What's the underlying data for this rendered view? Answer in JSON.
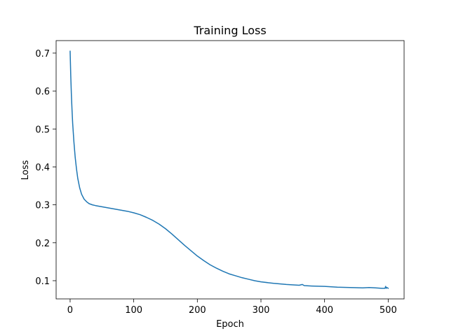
{
  "chart_data": {
    "type": "line",
    "title": "Training Loss",
    "xlabel": "Epoch",
    "ylabel": "Loss",
    "xlim": [
      -22,
      525
    ],
    "ylim": [
      0.052,
      0.733
    ],
    "x_ticks": [
      0,
      100,
      200,
      300,
      400,
      500
    ],
    "y_ticks": [
      0.1,
      0.2,
      0.3,
      0.4,
      0.5,
      0.6,
      0.7
    ],
    "y_tick_labels": [
      "0.1",
      "0.2",
      "0.3",
      "0.4",
      "0.5",
      "0.6",
      "0.7"
    ],
    "grid": false,
    "legend": false,
    "series": [
      {
        "color": "#1f77b4",
        "x": [
          0,
          1,
          2,
          3,
          4,
          5,
          6,
          8,
          10,
          12,
          15,
          18,
          22,
          26,
          30,
          35,
          40,
          50,
          60,
          70,
          80,
          90,
          100,
          110,
          120,
          130,
          140,
          150,
          160,
          170,
          180,
          190,
          200,
          210,
          220,
          230,
          240,
          250,
          260,
          270,
          280,
          290,
          300,
          320,
          340,
          360,
          365,
          368,
          380,
          400,
          420,
          440,
          460,
          470,
          480,
          490,
          495,
          496,
          497,
          498,
          500
        ],
        "y": [
          0.705,
          0.64,
          0.59,
          0.55,
          0.515,
          0.49,
          0.465,
          0.425,
          0.395,
          0.37,
          0.345,
          0.328,
          0.315,
          0.308,
          0.303,
          0.3,
          0.298,
          0.295,
          0.292,
          0.289,
          0.286,
          0.283,
          0.279,
          0.274,
          0.267,
          0.259,
          0.249,
          0.237,
          0.223,
          0.208,
          0.193,
          0.179,
          0.165,
          0.153,
          0.142,
          0.133,
          0.125,
          0.118,
          0.113,
          0.108,
          0.104,
          0.1,
          0.097,
          0.093,
          0.09,
          0.088,
          0.09,
          0.087,
          0.086,
          0.085,
          0.083,
          0.082,
          0.081,
          0.082,
          0.081,
          0.08,
          0.08,
          0.085,
          0.08,
          0.082,
          0.08
        ]
      }
    ]
  }
}
